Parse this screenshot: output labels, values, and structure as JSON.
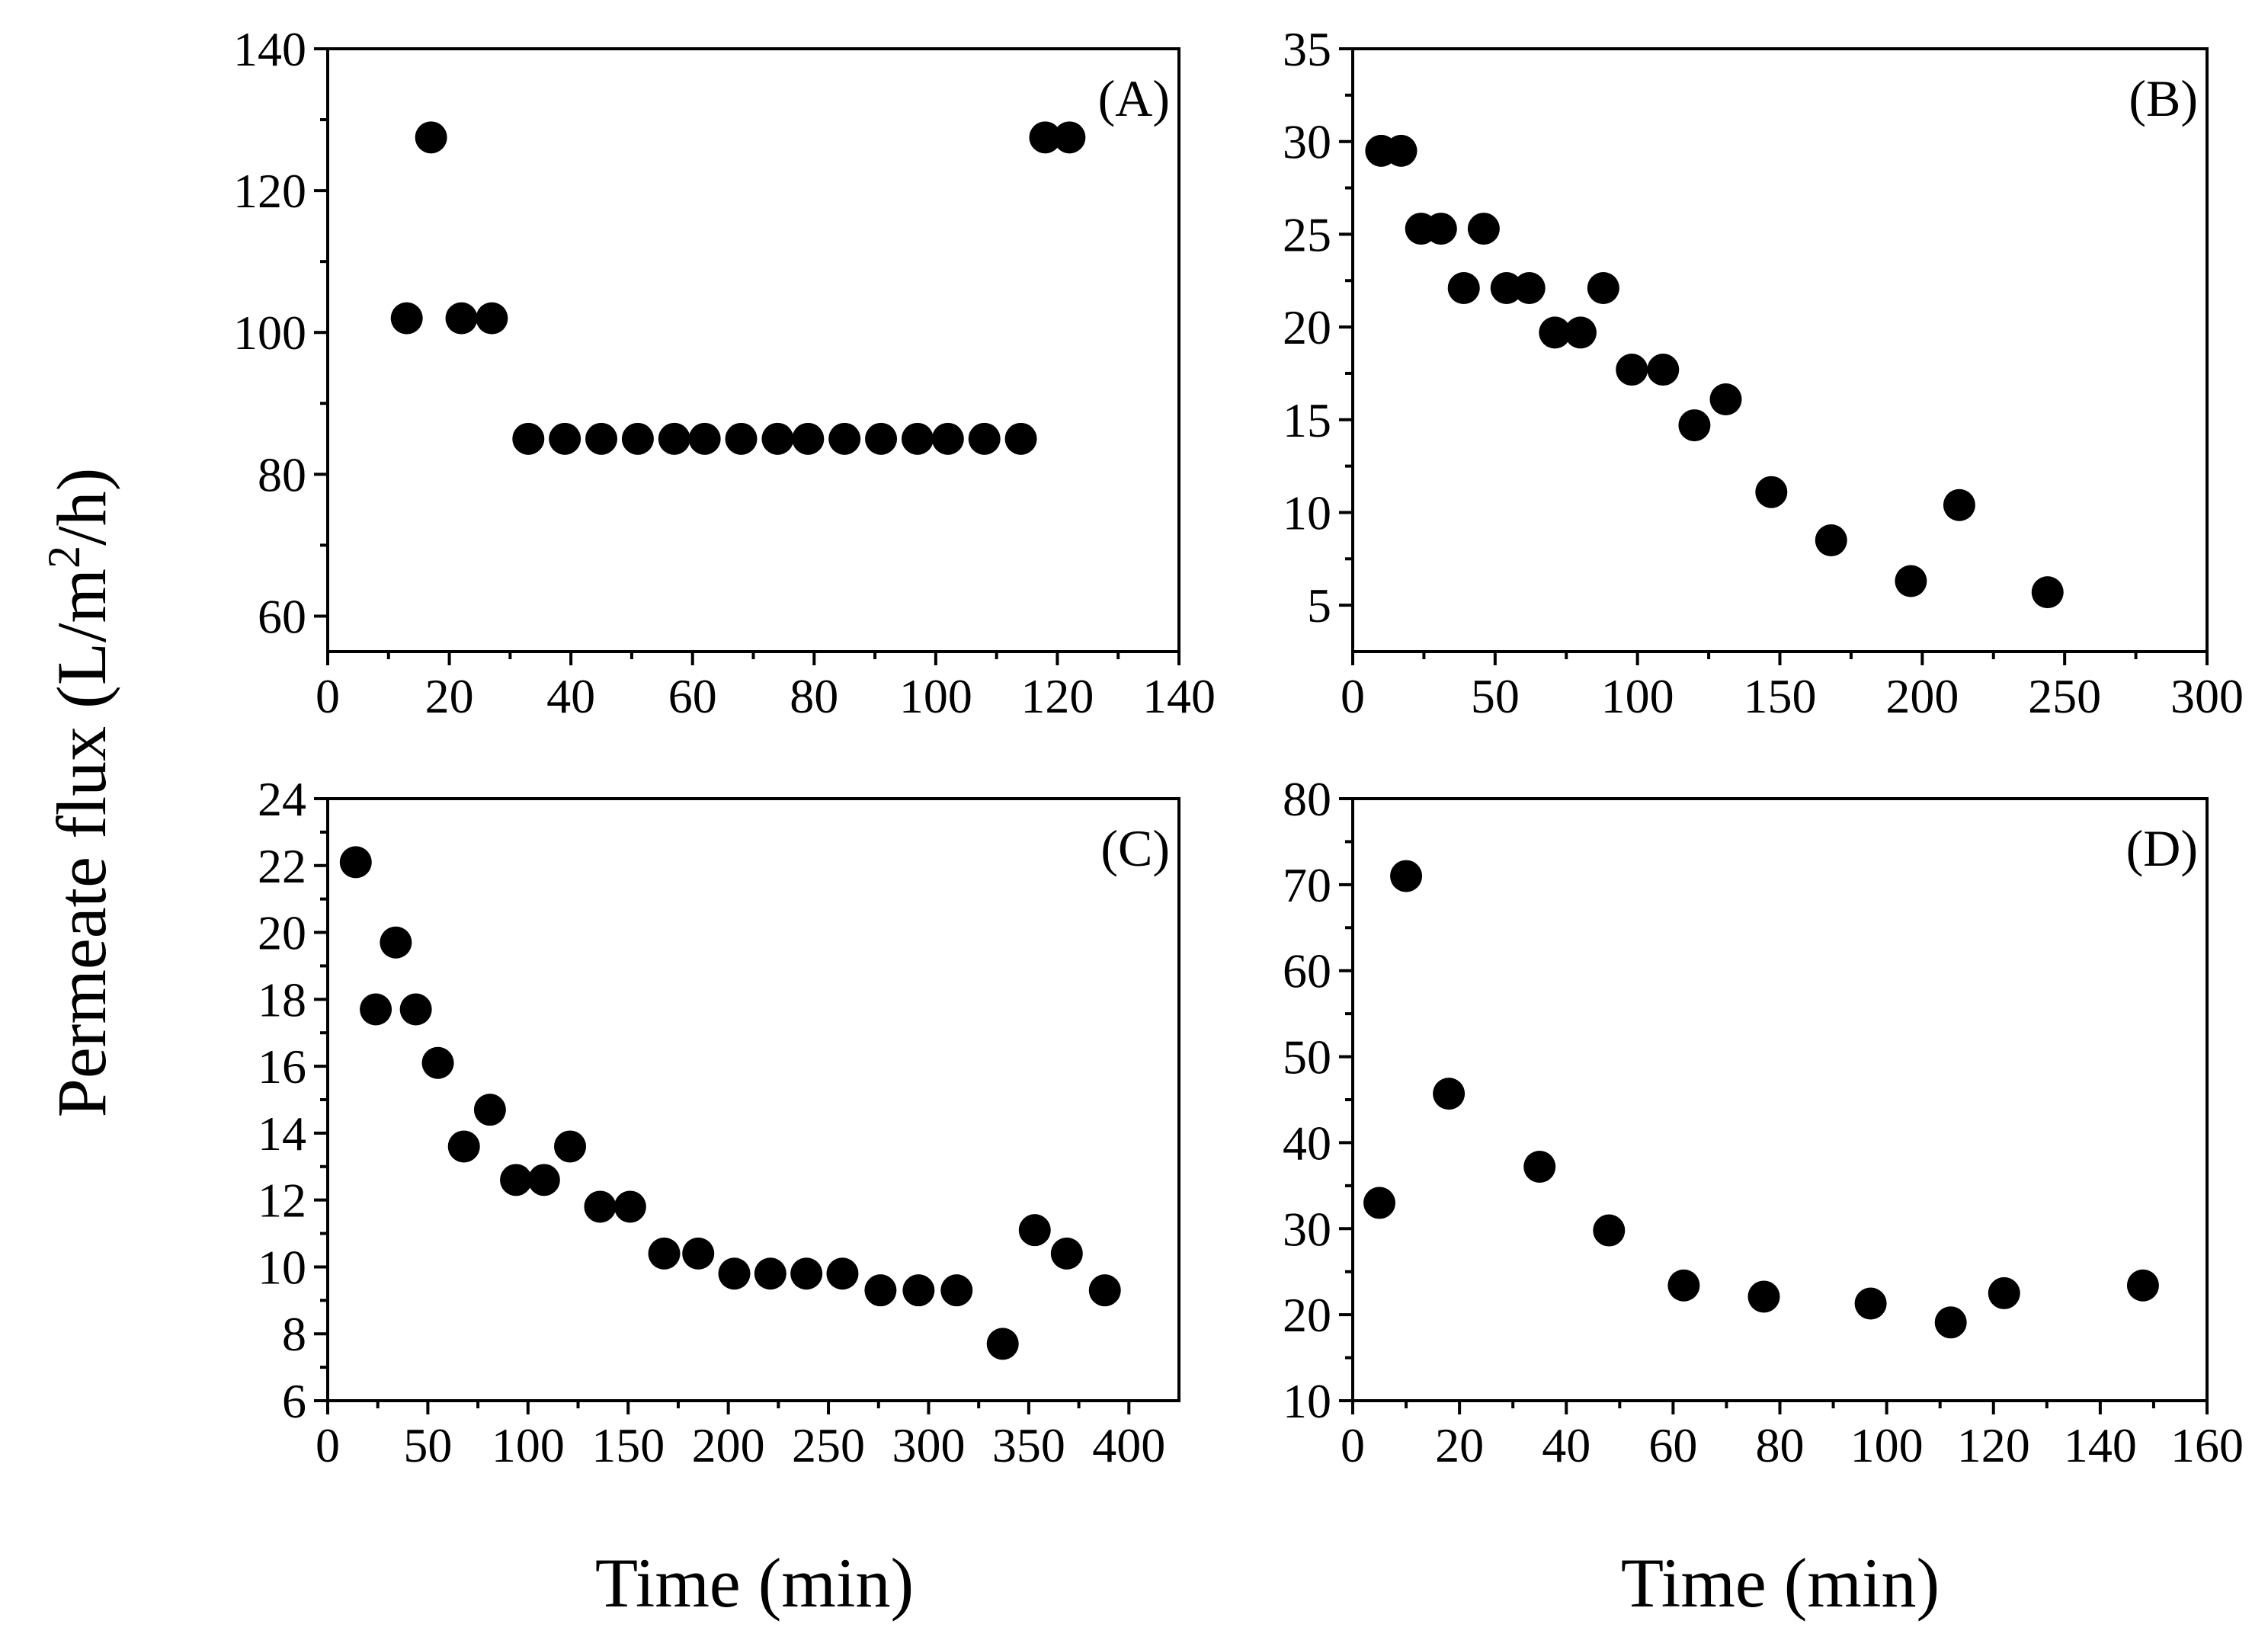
{
  "figure": {
    "ylabel": "Permeate flux (L/m²/h)",
    "ylabel_parts": {
      "prefix": "Permeate flux (L/m",
      "superscript": "2",
      "suffix": "/h)"
    },
    "xlabel_left": "Time (min)",
    "xlabel_right": "Time (min)"
  },
  "chart_data": [
    {
      "type": "scatter",
      "panel_label": "(A)",
      "xlabel": "Time (min)",
      "ylabel": "Permeate flux (L/m²/h)",
      "xlim": [
        0,
        140
      ],
      "ylim": [
        55,
        140
      ],
      "xticks": [
        0,
        20,
        40,
        60,
        80,
        100,
        120,
        140
      ],
      "yticks": [
        60,
        80,
        100,
        120,
        140
      ],
      "points": [
        [
          13,
          102
        ],
        [
          17,
          127.5
        ],
        [
          22,
          102
        ],
        [
          27,
          102
        ],
        [
          33,
          85
        ],
        [
          39,
          85
        ],
        [
          45,
          85
        ],
        [
          51,
          85
        ],
        [
          57,
          85
        ],
        [
          62,
          85
        ],
        [
          68,
          85
        ],
        [
          74,
          85
        ],
        [
          79,
          85
        ],
        [
          85,
          85
        ],
        [
          91,
          85
        ],
        [
          97,
          85
        ],
        [
          102,
          85
        ],
        [
          108,
          85
        ],
        [
          114,
          85
        ],
        [
          118,
          127.5
        ],
        [
          122,
          127.5
        ]
      ]
    },
    {
      "type": "scatter",
      "panel_label": "(B)",
      "xlabel": "Time (min)",
      "ylabel": "Permeate flux (L/m²/h)",
      "xlim": [
        0,
        300
      ],
      "ylim": [
        2.5,
        35
      ],
      "xticks": [
        0,
        50,
        100,
        150,
        200,
        250,
        300
      ],
      "yticks": [
        5,
        10,
        15,
        20,
        25,
        30,
        35
      ],
      "points": [
        [
          10,
          29.5
        ],
        [
          17,
          29.5
        ],
        [
          24,
          25.3
        ],
        [
          31,
          25.3
        ],
        [
          39,
          22.1
        ],
        [
          46,
          25.3
        ],
        [
          54,
          22.1
        ],
        [
          62,
          22.1
        ],
        [
          71,
          19.7
        ],
        [
          80,
          19.7
        ],
        [
          88,
          22.1
        ],
        [
          98,
          17.7
        ],
        [
          109,
          17.7
        ],
        [
          120,
          14.7
        ],
        [
          131,
          16.1
        ],
        [
          147,
          11.1
        ],
        [
          168,
          8.5
        ],
        [
          196,
          6.3
        ],
        [
          213,
          10.4
        ],
        [
          244,
          5.7
        ]
      ]
    },
    {
      "type": "scatter",
      "panel_label": "(C)",
      "xlabel": "Time (min)",
      "ylabel": "Permeate flux (L/m²/h)",
      "xlim": [
        0,
        425
      ],
      "ylim": [
        6,
        24
      ],
      "xticks": [
        0,
        50,
        100,
        150,
        200,
        250,
        300,
        350,
        400
      ],
      "yticks": [
        6,
        8,
        10,
        12,
        14,
        16,
        18,
        20,
        22,
        24
      ],
      "points": [
        [
          14,
          22.1
        ],
        [
          24,
          17.7
        ],
        [
          34,
          19.7
        ],
        [
          44,
          17.7
        ],
        [
          55,
          16.1
        ],
        [
          68,
          13.6
        ],
        [
          81,
          14.7
        ],
        [
          94,
          12.6
        ],
        [
          108,
          12.6
        ],
        [
          121,
          13.6
        ],
        [
          136,
          11.8
        ],
        [
          151,
          11.8
        ],
        [
          168,
          10.4
        ],
        [
          185,
          10.4
        ],
        [
          203,
          9.8
        ],
        [
          221,
          9.8
        ],
        [
          239,
          9.8
        ],
        [
          257,
          9.8
        ],
        [
          276,
          9.3
        ],
        [
          295,
          9.3
        ],
        [
          314,
          9.3
        ],
        [
          337,
          7.7
        ],
        [
          353,
          11.1
        ],
        [
          369,
          10.4
        ],
        [
          388,
          9.3
        ]
      ]
    },
    {
      "type": "scatter",
      "panel_label": "(D)",
      "xlabel": "Time (min)",
      "ylabel": "Permeate flux (L/m²/h)",
      "xlim": [
        0,
        160
      ],
      "ylim": [
        10,
        80
      ],
      "xticks": [
        0,
        20,
        40,
        60,
        80,
        100,
        120,
        140,
        160
      ],
      "yticks": [
        10,
        20,
        30,
        40,
        50,
        60,
        70,
        80
      ],
      "points": [
        [
          5,
          33
        ],
        [
          10,
          71
        ],
        [
          18,
          45.7
        ],
        [
          35,
          37.2
        ],
        [
          48,
          29.8
        ],
        [
          62,
          23.4
        ],
        [
          77,
          22.1
        ],
        [
          97,
          21.3
        ],
        [
          112,
          19.1
        ],
        [
          122,
          22.5
        ],
        [
          148,
          23.4
        ]
      ]
    }
  ]
}
